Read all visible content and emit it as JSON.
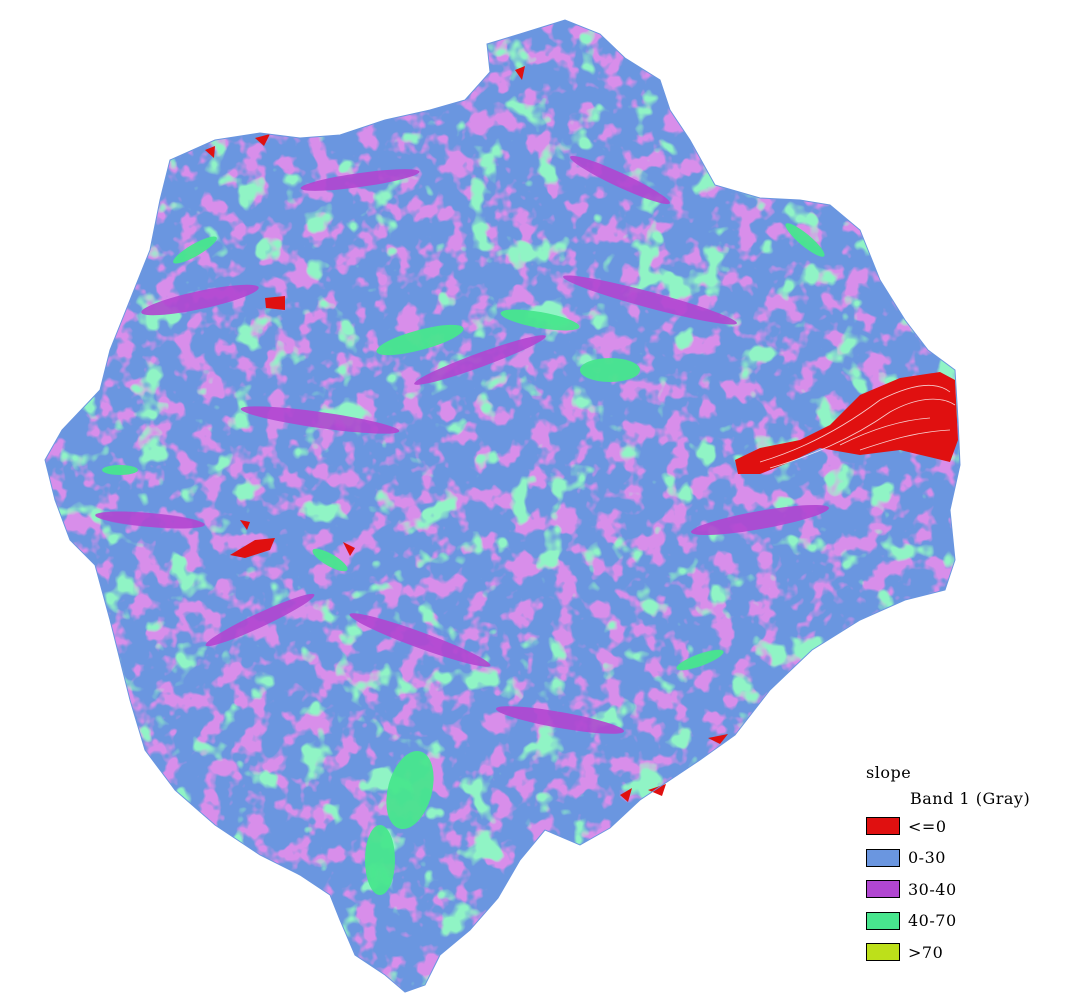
{
  "map": {
    "layer_name": "slope",
    "band_label": "Band 1 (Gray)",
    "classes": [
      {
        "label": "<=0",
        "color": "#e01010"
      },
      {
        "label": "0-30",
        "color": "#6a96e0"
      },
      {
        "label": "30-40",
        "color": "#b146d1"
      },
      {
        "label": "40-70",
        "color": "#48e68e"
      },
      {
        "label": ">70",
        "color": "#bde01a"
      }
    ]
  }
}
